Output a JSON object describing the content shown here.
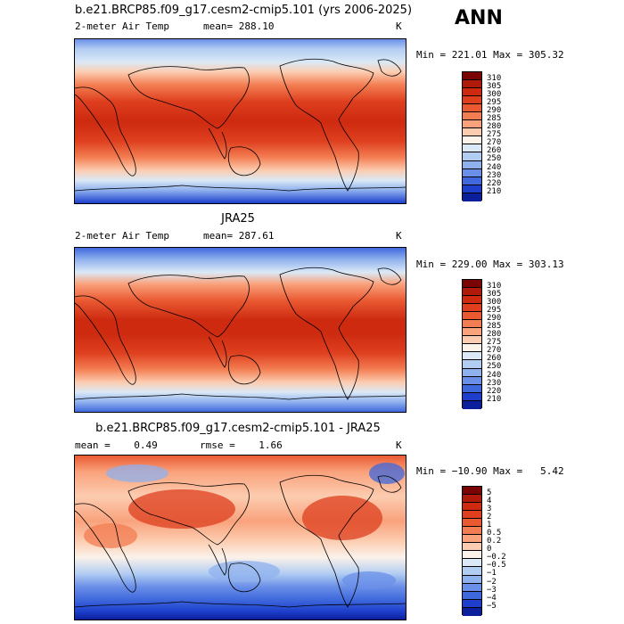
{
  "page_label": "ANN",
  "panels": [
    {
      "title": "b.e21.BRCP85.f09_g17.cesm2-cmip5.101 (yrs 2006-2025)",
      "left_label": "2-meter Air Temp",
      "mid_label": "mean= 288.10",
      "right_label": "K",
      "minmax": "Min = 221.01 Max = 305.32",
      "colorbar": {
        "labels": [
          "310",
          "305",
          "300",
          "295",
          "290",
          "285",
          "280",
          "275",
          "270",
          "260",
          "250",
          "240",
          "230",
          "220",
          "210"
        ],
        "colors": [
          "#7a0403",
          "#b01a0a",
          "#cd2a10",
          "#de3f1e",
          "#ea5a32",
          "#f37d52",
          "#f9a27c",
          "#fcccb0",
          "#fbf2ea",
          "#dbe9f6",
          "#b2cdf2",
          "#8fb1ee",
          "#6a8fe8",
          "#3f68dc",
          "#1d3fcc",
          "#0b1f9c"
        ]
      }
    },
    {
      "title": "JRA25",
      "left_label": "2-meter Air Temp",
      "mid_label": "mean= 287.61",
      "right_label": "K",
      "minmax": "Min = 229.00 Max = 303.13",
      "colorbar": {
        "labels": [
          "310",
          "305",
          "300",
          "295",
          "290",
          "285",
          "280",
          "275",
          "270",
          "260",
          "250",
          "240",
          "230",
          "220",
          "210"
        ],
        "colors": [
          "#7a0403",
          "#b01a0a",
          "#cd2a10",
          "#de3f1e",
          "#ea5a32",
          "#f37d52",
          "#f9a27c",
          "#fcccb0",
          "#fbf2ea",
          "#dbe9f6",
          "#b2cdf2",
          "#8fb1ee",
          "#6a8fe8",
          "#3f68dc",
          "#1d3fcc",
          "#0b1f9c"
        ]
      }
    },
    {
      "title": "b.e21.BRCP85.f09_g17.cesm2-cmip5.101 - JRA25",
      "left_label": "mean =    0.49",
      "mid_label": "rmse =    1.66",
      "right_label": "K",
      "minmax": "Min = −10.90 Max =   5.42",
      "colorbar": {
        "labels": [
          "5",
          "4",
          "3",
          "2",
          "1",
          "0.5",
          "0.2",
          "0",
          "−0.2",
          "−0.5",
          "−1",
          "−2",
          "−3",
          "−4",
          "−5"
        ],
        "colors": [
          "#7a0403",
          "#b01a0a",
          "#cd2a10",
          "#de3f1e",
          "#ea5a32",
          "#f37d52",
          "#f9a27c",
          "#fcccb0",
          "#fbf2ea",
          "#dbe9f6",
          "#b2cdf2",
          "#8fb1ee",
          "#6a8fe8",
          "#3f68dc",
          "#1d3fcc",
          "#0b1f9c"
        ]
      }
    }
  ]
}
